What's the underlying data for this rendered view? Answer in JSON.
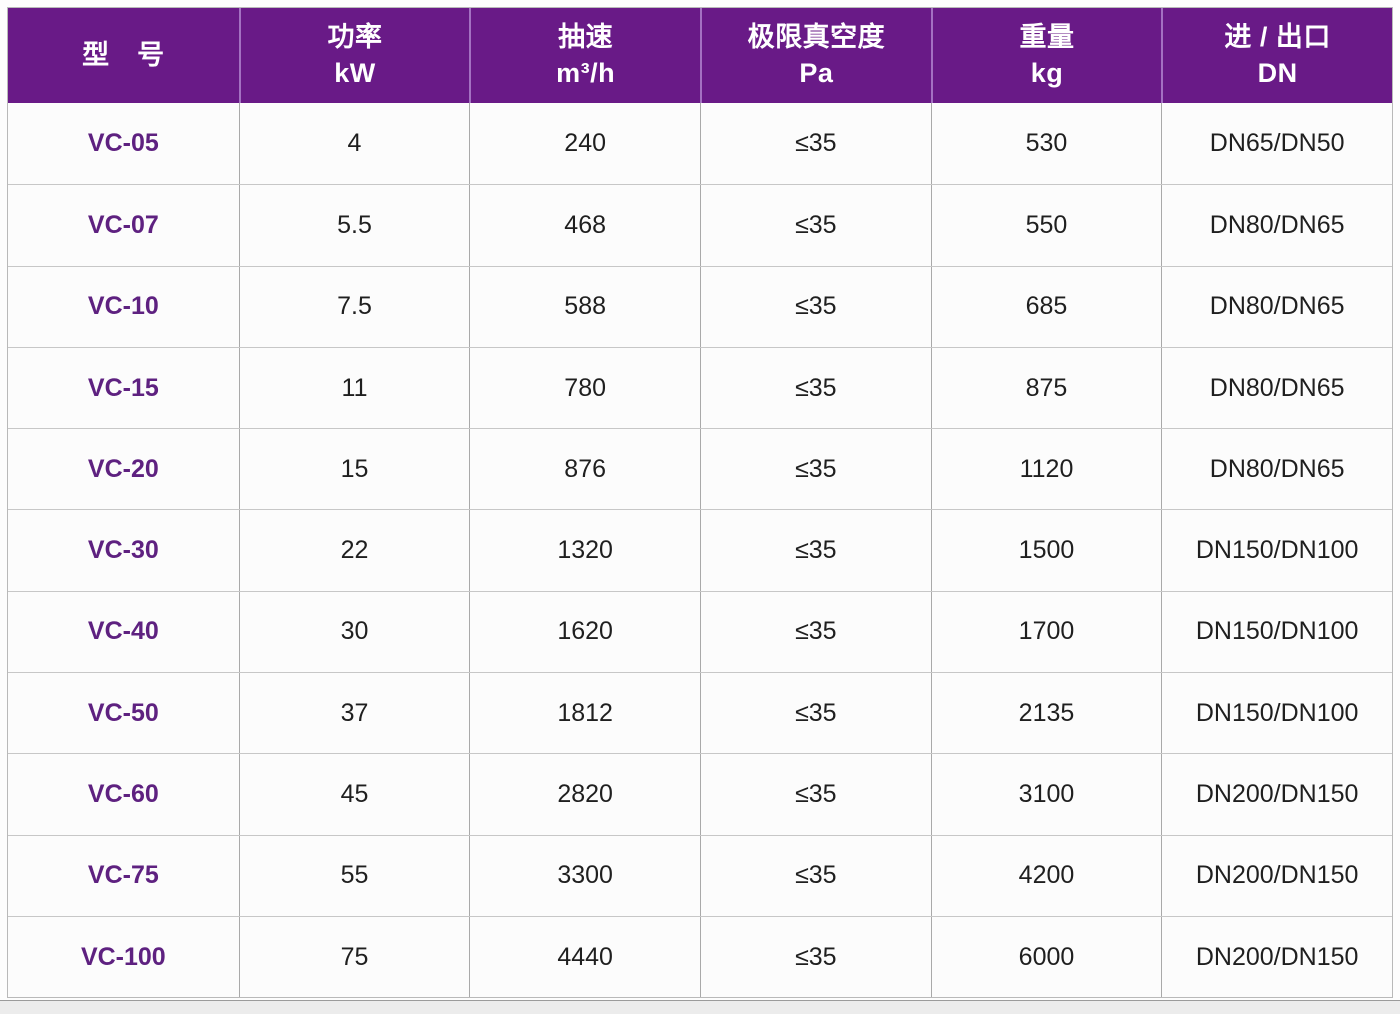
{
  "table": {
    "columns": [
      {
        "title": "型　号",
        "unit": ""
      },
      {
        "title": "功率",
        "unit": "kW"
      },
      {
        "title": "抽速",
        "unit": "m³/h"
      },
      {
        "title": "极限真空度",
        "unit": "Pa"
      },
      {
        "title": "重量",
        "unit": "kg"
      },
      {
        "title": "进 / 出口",
        "unit": "DN"
      }
    ],
    "rows": [
      {
        "model": "VC-05",
        "power": "4",
        "speed": "240",
        "vacuum": "≤35",
        "weight": "530",
        "ports": "DN65/DN50"
      },
      {
        "model": "VC-07",
        "power": "5.5",
        "speed": "468",
        "vacuum": "≤35",
        "weight": "550",
        "ports": "DN80/DN65"
      },
      {
        "model": "VC-10",
        "power": "7.5",
        "speed": "588",
        "vacuum": "≤35",
        "weight": "685",
        "ports": "DN80/DN65"
      },
      {
        "model": "VC-15",
        "power": "11",
        "speed": "780",
        "vacuum": "≤35",
        "weight": "875",
        "ports": "DN80/DN65"
      },
      {
        "model": "VC-20",
        "power": "15",
        "speed": "876",
        "vacuum": "≤35",
        "weight": "1120",
        "ports": "DN80/DN65"
      },
      {
        "model": "VC-30",
        "power": "22",
        "speed": "1320",
        "vacuum": "≤35",
        "weight": "1500",
        "ports": "DN150/DN100"
      },
      {
        "model": "VC-40",
        "power": "30",
        "speed": "1620",
        "vacuum": "≤35",
        "weight": "1700",
        "ports": "DN150/DN100"
      },
      {
        "model": "VC-50",
        "power": "37",
        "speed": "1812",
        "vacuum": "≤35",
        "weight": "2135",
        "ports": "DN150/DN100"
      },
      {
        "model": "VC-60",
        "power": "45",
        "speed": "2820",
        "vacuum": "≤35",
        "weight": "3100",
        "ports": "DN200/DN150"
      },
      {
        "model": "VC-75",
        "power": "55",
        "speed": "3300",
        "vacuum": "≤35",
        "weight": "4200",
        "ports": "DN200/DN150"
      },
      {
        "model": "VC-100",
        "power": "75",
        "speed": "4440",
        "vacuum": "≤35",
        "weight": "6000",
        "ports": "DN200/DN150"
      }
    ]
  },
  "colors": {
    "header_bg": "#691a87",
    "header_divider": "#a471c2",
    "model_text": "#5e2180",
    "grid_line": "#c7c7c7",
    "column_line": "#a9a9a9"
  }
}
